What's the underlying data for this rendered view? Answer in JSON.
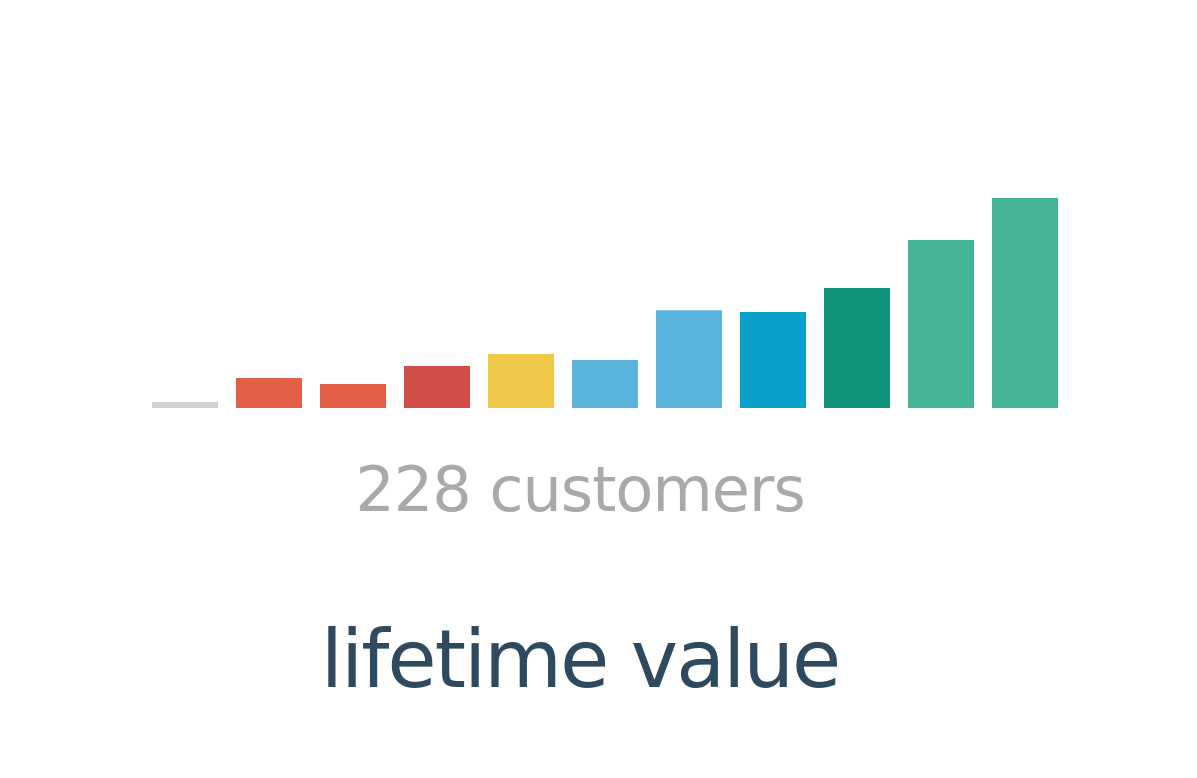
{
  "widget": {
    "count_label": "228 customers",
    "title": "lifetime value"
  },
  "colors": {
    "title": "#2e4a5f",
    "count_label": "#a9a9a9"
  },
  "chart_data": {
    "type": "bar",
    "values": [
      1,
      5,
      4,
      7,
      9,
      8,
      16.3,
      16,
      20,
      28,
      35
    ],
    "colors": [
      "#cfcfcf",
      "#e15f45",
      "#e15f45",
      "#d04e47",
      "#efc847",
      "#5bb4de",
      "#5bb4de",
      "#0aa0ca",
      "#12947a",
      "#43b497",
      "#43b497"
    ],
    "ylim": [
      0,
      35
    ],
    "grid": false,
    "legend": "none"
  }
}
